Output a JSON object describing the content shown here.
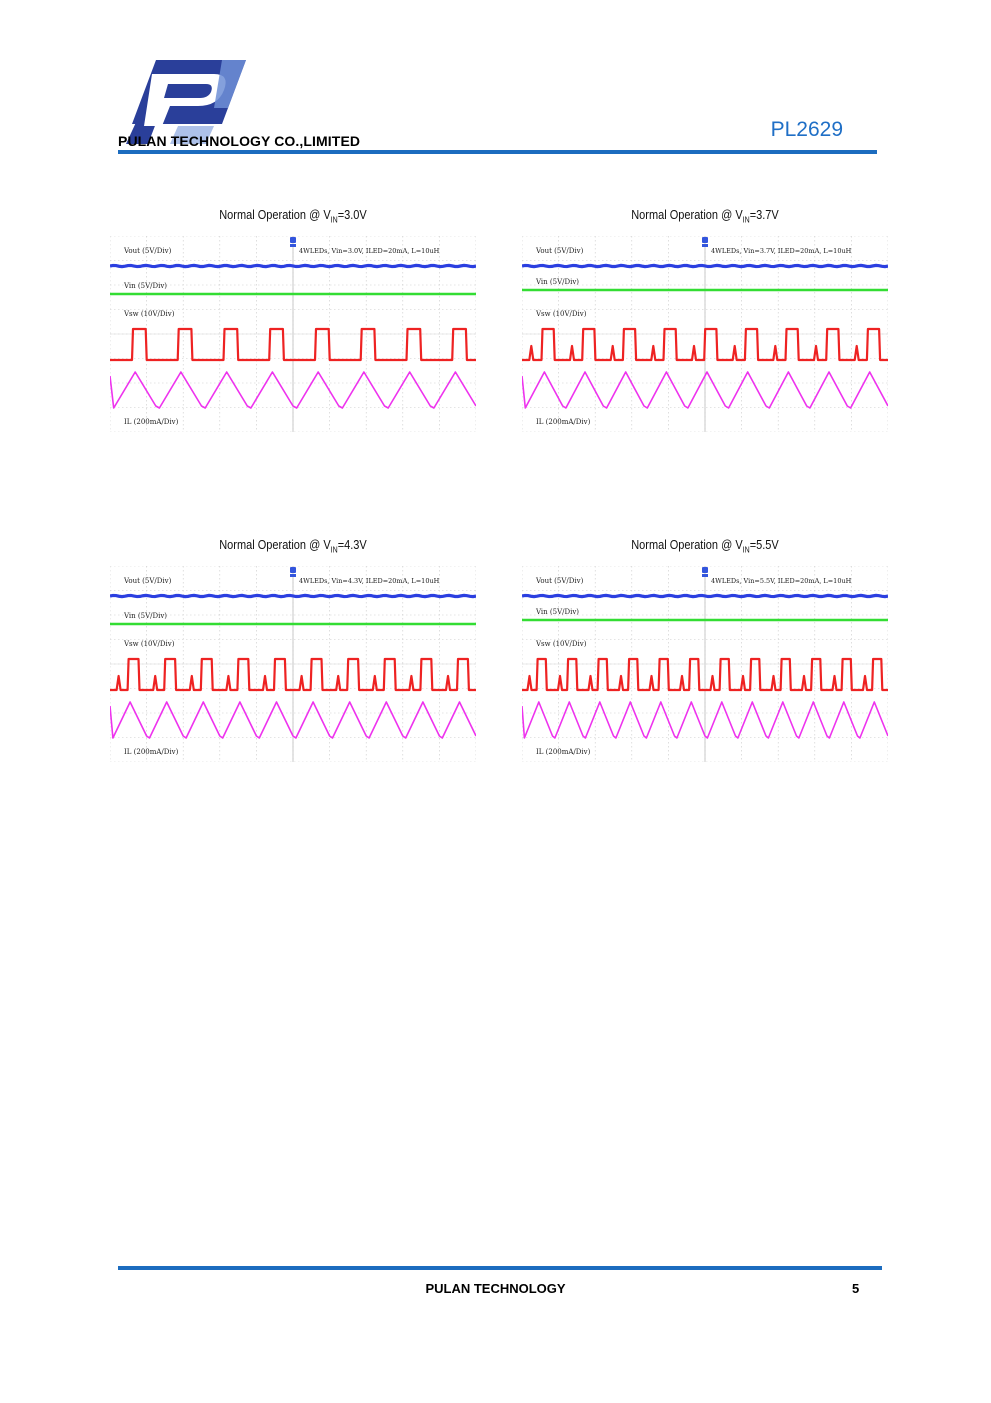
{
  "header": {
    "company": "PULAN TECHNOLOGY CO.,LIMITED",
    "part_number": "PL2629"
  },
  "figures": [
    {
      "caption_pre": "Normal Operation @ V",
      "caption_sub": "IN",
      "caption_post": "=3.0V",
      "note": "4WLEDs, Vin=3.0V, ILED=20mA, L=10uH",
      "labels": {
        "vout": "Vout (5V/Div)",
        "vin": "Vin (5V/Div)",
        "vsw": "Vsw (10V/Div)",
        "il": "IL (200mA/Div)"
      },
      "pulses": 8,
      "ringing": false,
      "vin_label_below": false
    },
    {
      "caption_pre": "Normal Operation @ V",
      "caption_sub": "IN",
      "caption_post": "=3.7V",
      "note": "4WLEDs, Vin=3.7V, ILED=20mA, L=10uH",
      "labels": {
        "vout": "Vout (5V/Div)",
        "vin": "Vin (5V/Div)",
        "vsw": "Vsw (10V/Div)",
        "il": "IL (200mA/Div)"
      },
      "pulses": 9,
      "ringing": true,
      "vin_label_below": true
    },
    {
      "caption_pre": "Normal Operation @ V",
      "caption_sub": "IN",
      "caption_post": "=4.3V",
      "note": "4WLEDs, Vin=4.3V, ILED=20mA, L=10uH",
      "labels": {
        "vout": "Vout (5V/Div)",
        "vin": "Vin (5V/Div)",
        "vsw": "Vsw (10V/Div)",
        "il": "IL (200mA/Div)"
      },
      "pulses": 10,
      "ringing": true,
      "vin_label_below": false
    },
    {
      "caption_pre": "Normal Operation @ V",
      "caption_sub": "IN",
      "caption_post": "=5.5V",
      "note": "4WLEDs, Vin=5.5V, ILED=20mA, L=10uH",
      "labels": {
        "vout": "Vout (5V/Div)",
        "vin": "Vin (5V/Div)",
        "vsw": "Vsw (10V/Div)",
        "il": "IL (200mA/Div)"
      },
      "pulses": 12,
      "ringing": true,
      "vin_label_below": true
    }
  ],
  "trace_colors": {
    "vout": "#2b3fe0",
    "vin": "#33dd33",
    "vsw": "#ee2222",
    "il": "#ee33ee"
  },
  "footer": {
    "company": "PULAN TECHNOLOGY",
    "page": "5"
  }
}
